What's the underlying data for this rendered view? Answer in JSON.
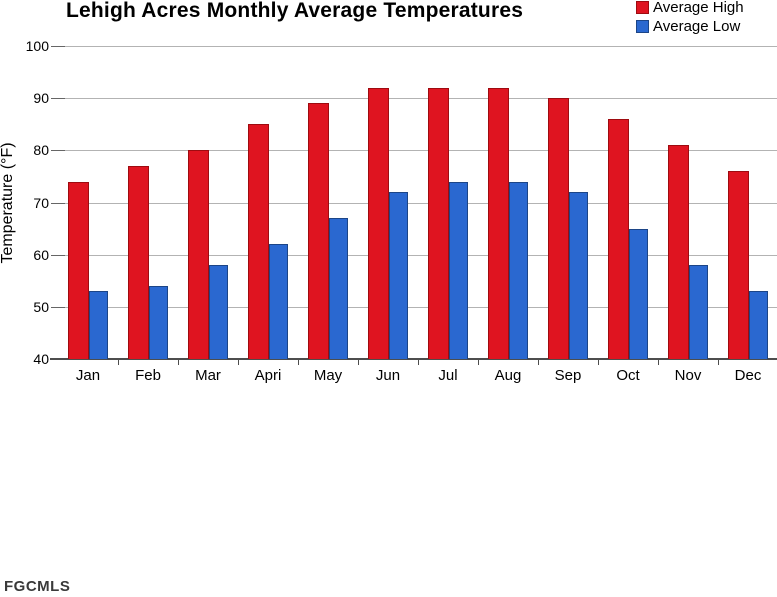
{
  "title": "Lehigh Acres Monthly Average Temperatures",
  "watermark": "FGCMLS",
  "legend": {
    "items": [
      {
        "label": "Average High",
        "color": "#df1420",
        "border": "#9e0b10"
      },
      {
        "label": "Average Low",
        "color": "#2a68d0",
        "border": "#1c4587"
      }
    ]
  },
  "chart_data": {
    "type": "bar",
    "title": "Lehigh Acres Monthly Average Temperatures",
    "categories": [
      "Jan",
      "Feb",
      "Mar",
      "Apri",
      "May",
      "Jun",
      "Jul",
      "Aug",
      "Sep",
      "Oct",
      "Nov",
      "Dec"
    ],
    "series": [
      {
        "name": "Average High",
        "color": "#df1420",
        "border_color": "#9e0b10",
        "values": [
          74,
          77,
          80,
          85,
          89,
          92,
          92,
          92,
          90,
          86,
          81,
          76
        ]
      },
      {
        "name": "Average Low",
        "color": "#2a68d0",
        "border_color": "#1c4587",
        "values": [
          53,
          54,
          58,
          62,
          67,
          72,
          74,
          74,
          72,
          65,
          58,
          53
        ]
      }
    ],
    "xlabel": "",
    "ylabel": "Temperature (°F)",
    "ylim": [
      40,
      100
    ],
    "yticks": [
      40,
      50,
      60,
      70,
      80,
      90,
      100
    ],
    "grid": true,
    "grid_color": "#b3b3b3",
    "legend_position": "top-right"
  }
}
